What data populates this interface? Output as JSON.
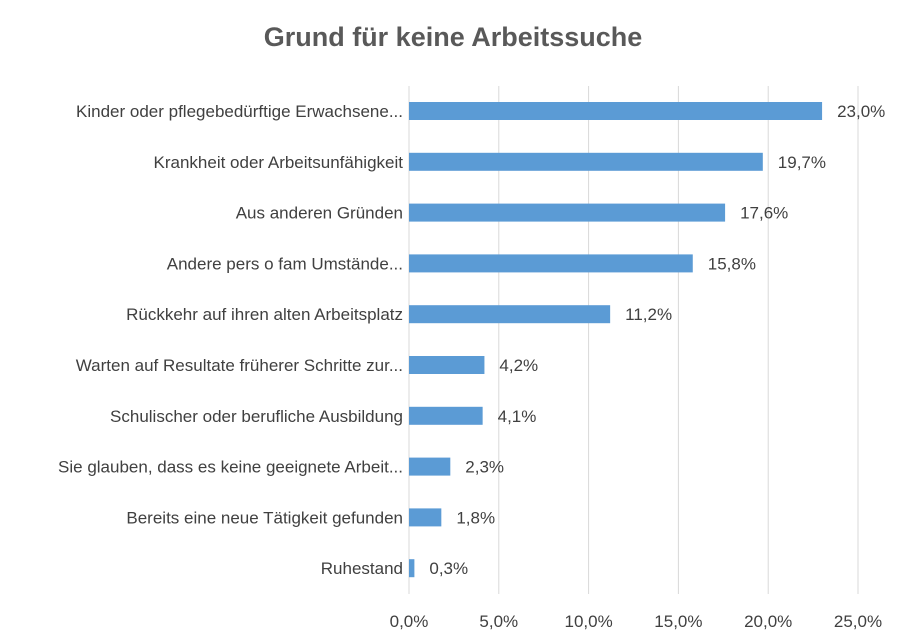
{
  "chart_data": {
    "type": "bar",
    "orientation": "horizontal",
    "title": "Grund für keine Arbeitssuche",
    "xlabel": "",
    "ylabel": "",
    "xlim": [
      0,
      25
    ],
    "grid": true,
    "bar_color": "#5B9BD5",
    "categories": [
      "Kinder oder pflegebedürftige Erwachsene...",
      "Krankheit oder Arbeitsunfähigkeit",
      "Aus anderen Gründen",
      "Andere pers o fam Umstände...",
      "Rückkehr auf ihren alten Arbeitsplatz",
      "Warten auf Resultate früherer Schritte zur...",
      "Schulischer oder berufliche Ausbildung",
      "Sie glauben, dass es keine geeignete Arbeit...",
      "Bereits eine neue Tätigkeit gefunden",
      "Ruhestand"
    ],
    "values": [
      23.0,
      19.7,
      17.6,
      15.8,
      11.2,
      4.2,
      4.1,
      2.3,
      1.8,
      0.3
    ],
    "data_labels": [
      "23,0%",
      "19,7%",
      "17,6%",
      "15,8%",
      "11,2%",
      "4,2%",
      "4,1%",
      "2,3%",
      "1,8%",
      "0,3%"
    ],
    "x_ticks": [
      0,
      5,
      10,
      15,
      20,
      25
    ],
    "x_tick_labels": [
      "0,0%",
      "5,0%",
      "10,0%",
      "15,0%",
      "20,0%",
      "25,0%"
    ]
  }
}
